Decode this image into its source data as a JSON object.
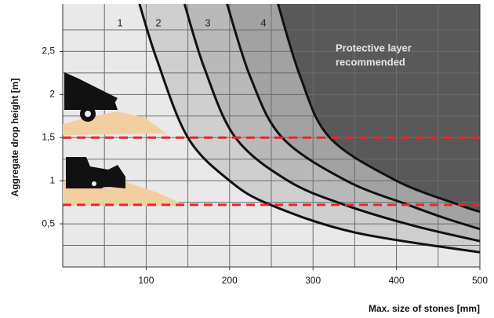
{
  "chart_data": {
    "type": "zones",
    "xlabel": "Max. size of stones [mm]",
    "ylabel": "Aggregate drop height [m]",
    "xlim": [
      0,
      500
    ],
    "ylim": [
      0,
      3.05
    ],
    "xticks": [
      100,
      200,
      300,
      400,
      500
    ],
    "yticks": [
      {
        "value": 0.5,
        "label": "0,5"
      },
      1,
      {
        "value": 1.5,
        "label": "1,5"
      },
      2,
      {
        "value": 2.5,
        "label": "2,5"
      }
    ],
    "xgrid": [
      50,
      100,
      150,
      200,
      250,
      300,
      350,
      400,
      450
    ],
    "ygrid": [
      0.25,
      0.5,
      0.75,
      1,
      1.25,
      1.5,
      1.75,
      2,
      2.25,
      2.5,
      2.75
    ],
    "background": "#e9e9e9",
    "line_color": "#111111",
    "zone_labels": [
      "1",
      "2",
      "3",
      "4"
    ],
    "annotation": [
      "Protective layer",
      "recommended"
    ],
    "reference_lines": [
      1.5,
      0.72
    ],
    "reference_color": "#e8262b",
    "series": [
      {
        "color": "#cfcfcf",
        "x": [
          92,
          113,
          150,
          200,
          249,
          350,
          500
        ],
        "values": [
          3.05,
          2.4,
          1.5,
          1.0,
          0.72,
          0.4,
          0.17
        ]
      },
      {
        "color": "#b9b9b9",
        "x": [
          146,
          170,
          207,
          270,
          338,
          420,
          500
        ],
        "values": [
          3.05,
          2.3,
          1.5,
          1.0,
          0.72,
          0.48,
          0.3
        ]
      },
      {
        "color": "#a2a2a2",
        "x": [
          197,
          225,
          263,
          340,
          414,
          460,
          500
        ],
        "values": [
          3.05,
          2.2,
          1.5,
          1.0,
          0.72,
          0.56,
          0.44
        ]
      },
      {
        "color": "#595959",
        "x": [
          258,
          285,
          320,
          400,
          475,
          500
        ],
        "values": [
          3.05,
          2.2,
          1.5,
          1.0,
          0.72,
          0.64
        ]
      }
    ]
  }
}
